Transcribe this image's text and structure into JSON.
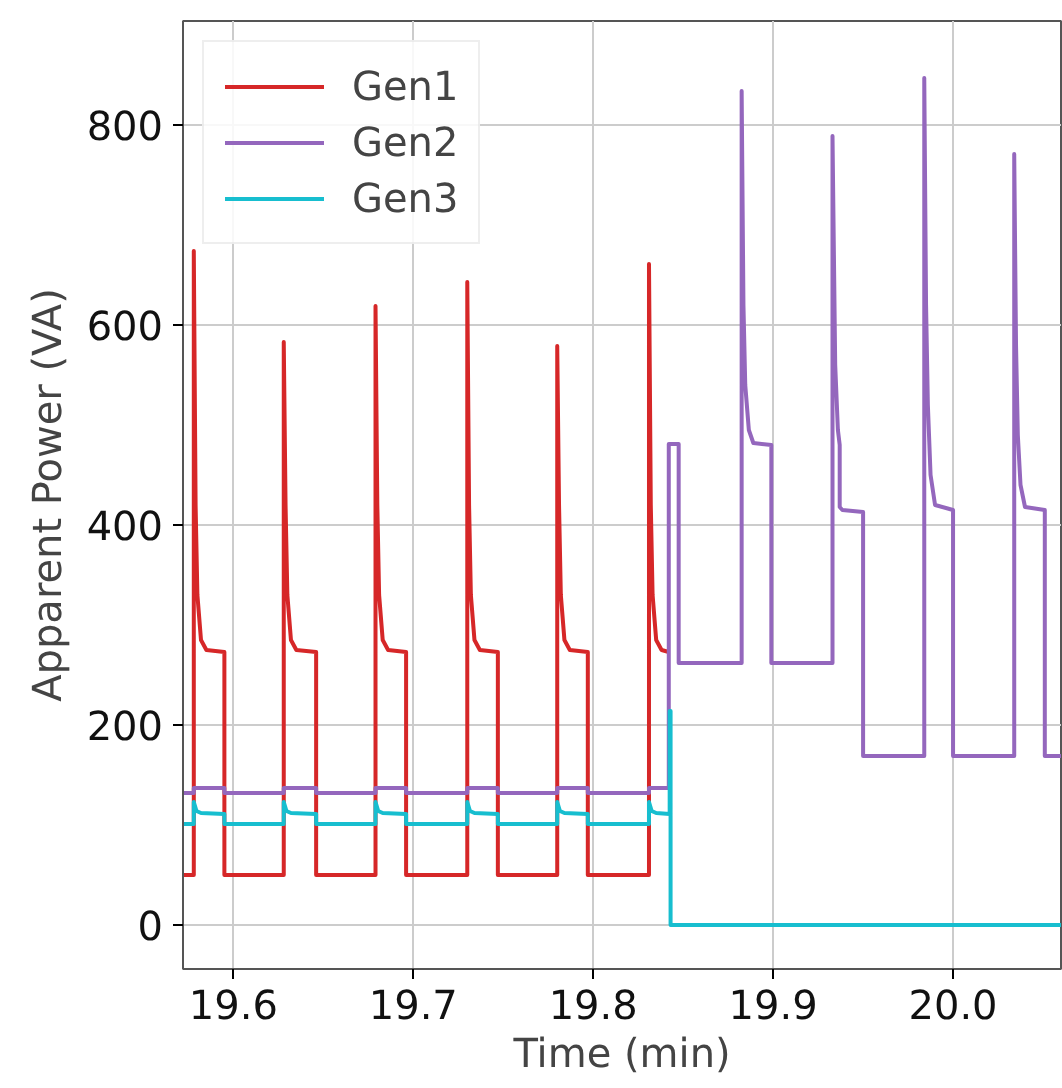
{
  "chart_data": {
    "type": "line",
    "xlabel": "Time (min)",
    "ylabel": "Apparent Power (VA)",
    "xlim": [
      19.572,
      20.06
    ],
    "ylim": [
      -44,
      904
    ],
    "xticks": [
      19.6,
      19.7,
      19.8,
      19.9,
      {
        "value": 20.0,
        "label": "20.0"
      }
    ],
    "yticks": [
      0,
      200,
      400,
      600,
      800
    ],
    "grid": true,
    "legend": "top left",
    "line_style": "solid",
    "marker": "none",
    "series": [
      {
        "name": "Gen1",
        "color": "#d62728",
        "x": [
          19.572,
          19.578,
          19.578,
          19.579,
          19.58,
          19.582,
          19.585,
          19.595,
          19.595,
          19.628,
          19.628,
          19.629,
          19.63,
          19.632,
          19.635,
          19.646,
          19.646,
          19.679,
          19.679,
          19.68,
          19.681,
          19.683,
          19.686,
          19.696,
          19.696,
          19.73,
          19.73,
          19.731,
          19.732,
          19.734,
          19.737,
          19.747,
          19.747,
          19.78,
          19.78,
          19.781,
          19.782,
          19.784,
          19.787,
          19.797,
          19.797,
          19.831,
          19.831,
          19.832,
          19.833,
          19.835,
          19.838,
          19.842
        ],
        "values": [
          50,
          50,
          674,
          420,
          330,
          285,
          275,
          273,
          50,
          50,
          583,
          420,
          330,
          285,
          275,
          273,
          50,
          50,
          619,
          420,
          330,
          285,
          275,
          273,
          50,
          50,
          643,
          420,
          330,
          285,
          275,
          273,
          50,
          50,
          579,
          420,
          330,
          285,
          275,
          273,
          50,
          50,
          661,
          420,
          330,
          285,
          275,
          273
        ]
      },
      {
        "name": "Gen2",
        "color": "#9467bd",
        "x": [
          19.572,
          19.578,
          19.578,
          19.595,
          19.595,
          19.628,
          19.628,
          19.646,
          19.646,
          19.679,
          19.679,
          19.696,
          19.696,
          19.73,
          19.73,
          19.747,
          19.747,
          19.78,
          19.78,
          19.797,
          19.797,
          19.831,
          19.831,
          19.842,
          19.842,
          19.8475,
          19.8475,
          19.8825,
          19.8825,
          19.8835,
          19.8845,
          19.8865,
          19.889,
          19.899,
          19.899,
          19.933,
          19.933,
          19.9345,
          19.936,
          19.937,
          19.937,
          19.9385,
          19.95,
          19.95,
          19.984,
          19.984,
          19.985,
          19.986,
          19.9875,
          19.99,
          20.0,
          20.0,
          20.034,
          20.034,
          20.035,
          20.036,
          20.0375,
          20.04,
          20.051,
          20.051,
          20.06
        ],
        "values": [
          132,
          132,
          137,
          137,
          132,
          132,
          137,
          137,
          132,
          132,
          137,
          137,
          132,
          132,
          137,
          137,
          132,
          132,
          137,
          137,
          132,
          132,
          137,
          137,
          481,
          481,
          262,
          262,
          834,
          620,
          540,
          495,
          482,
          480,
          262,
          262,
          789,
          560,
          495,
          480,
          418,
          415,
          413,
          169,
          169,
          847,
          620,
          520,
          450,
          420,
          415,
          169,
          169,
          771,
          580,
          490,
          440,
          418,
          415,
          169,
          169
        ]
      },
      {
        "name": "Gen3",
        "color": "#17becf",
        "x": [
          19.572,
          19.578,
          19.578,
          19.5795,
          19.582,
          19.595,
          19.595,
          19.628,
          19.628,
          19.6295,
          19.632,
          19.646,
          19.646,
          19.679,
          19.679,
          19.6805,
          19.683,
          19.696,
          19.696,
          19.73,
          19.73,
          19.7315,
          19.734,
          19.747,
          19.747,
          19.78,
          19.78,
          19.7815,
          19.784,
          19.797,
          19.797,
          19.831,
          19.831,
          19.8325,
          19.835,
          19.8425,
          19.8425,
          19.843,
          19.843,
          20.06
        ],
        "values": [
          101,
          101,
          123,
          114,
          112,
          111,
          101,
          101,
          123,
          114,
          112,
          111,
          101,
          101,
          123,
          114,
          112,
          111,
          101,
          101,
          123,
          114,
          112,
          111,
          101,
          101,
          123,
          114,
          112,
          111,
          101,
          101,
          123,
          114,
          112,
          111,
          214,
          214,
          0,
          0
        ]
      }
    ]
  }
}
